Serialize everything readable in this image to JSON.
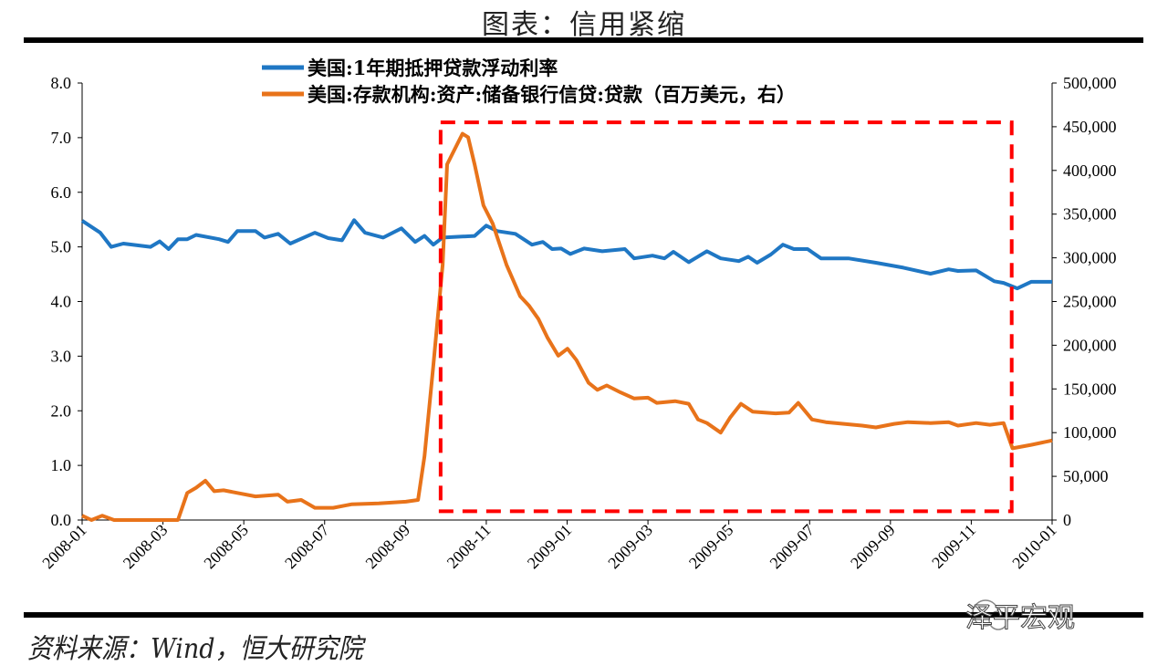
{
  "title": "图表：信用紧缩",
  "source": "资料来源：Wind，恒大研究院",
  "watermark": "泽平宏观",
  "chart_data": {
    "type": "line",
    "title": "图表：信用紧缩",
    "x_unit": "months since 2008-01",
    "xlim": [
      0,
      24
    ],
    "x_tick_labels": [
      "2008-01",
      "2008-03",
      "2008-05",
      "2008-07",
      "2008-09",
      "2008-11",
      "2009-01",
      "2009-03",
      "2009-05",
      "2009-07",
      "2009-09",
      "2009-11",
      "2010-01"
    ],
    "y_left": {
      "lim": [
        0,
        8
      ],
      "ticks": [
        "0.0",
        "1.0",
        "2.0",
        "3.0",
        "4.0",
        "5.0",
        "6.0",
        "7.0",
        "8.0"
      ]
    },
    "y_right": {
      "lim": [
        0,
        500000
      ],
      "ticks": [
        "0",
        "50,000",
        "100,000",
        "150,000",
        "200,000",
        "250,000",
        "300,000",
        "350,000",
        "400,000",
        "450,000",
        "500,000"
      ]
    },
    "legend_position": "top",
    "grid": false,
    "series": [
      {
        "name": "美国:1年期抵押贷款浮动利率",
        "axis": "left",
        "color": "#1f77c4",
        "x": [
          0,
          0.45,
          0.72,
          1.02,
          1.69,
          1.92,
          2.14,
          2.37,
          2.6,
          2.82,
          3.39,
          3.61,
          3.84,
          4.29,
          4.51,
          4.85,
          5.15,
          5.76,
          6.09,
          6.43,
          6.73,
          7.0,
          7.45,
          7.9,
          8.24,
          8.47,
          8.69,
          8.92,
          9.71,
          10.0,
          10.27,
          10.72,
          11.13,
          11.4,
          11.63,
          11.85,
          12.08,
          12.42,
          12.87,
          13.43,
          13.66,
          14.11,
          14.41,
          14.63,
          15.01,
          15.46,
          15.8,
          16.25,
          16.48,
          16.7,
          17.04,
          17.34,
          17.61,
          17.95,
          18.28,
          18.96,
          19.64,
          20.32,
          20.99,
          21.44,
          21.67,
          22.12,
          22.57,
          22.8,
          23.14,
          23.48,
          24
        ],
        "values": [
          5.48,
          5.26,
          5.0,
          5.06,
          5.0,
          5.1,
          4.96,
          5.14,
          5.14,
          5.22,
          5.14,
          5.09,
          5.29,
          5.29,
          5.17,
          5.24,
          5.06,
          5.26,
          5.16,
          5.12,
          5.49,
          5.26,
          5.17,
          5.34,
          5.09,
          5.2,
          5.04,
          5.17,
          5.2,
          5.39,
          5.29,
          5.24,
          5.04,
          5.09,
          4.96,
          4.97,
          4.87,
          4.97,
          4.92,
          4.96,
          4.79,
          4.84,
          4.79,
          4.91,
          4.72,
          4.92,
          4.79,
          4.74,
          4.82,
          4.71,
          4.86,
          5.04,
          4.96,
          4.96,
          4.79,
          4.79,
          4.71,
          4.62,
          4.51,
          4.59,
          4.56,
          4.57,
          4.37,
          4.34,
          4.24,
          4.36,
          4.36
        ]
      },
      {
        "name": "美国:存款机构:资产:储备银行信贷:贷款（百万美元，右）",
        "axis": "right",
        "color": "#e8731a",
        "x": [
          0,
          0.23,
          0.5,
          0.79,
          2.03,
          2.37,
          2.6,
          2.82,
          3.05,
          3.27,
          3.5,
          3.84,
          4.29,
          4.85,
          5.08,
          5.42,
          5.76,
          6.21,
          6.66,
          7.34,
          8.01,
          8.31,
          8.47,
          8.69,
          8.92,
          9.03,
          9.26,
          9.41,
          9.55,
          9.71,
          9.93,
          10.16,
          10.5,
          10.84,
          11.06,
          11.29,
          11.51,
          11.78,
          12.01,
          12.23,
          12.53,
          12.75,
          12.98,
          13.32,
          13.66,
          14.0,
          14.22,
          14.67,
          15.01,
          15.24,
          15.46,
          15.8,
          16.03,
          16.3,
          16.59,
          17.16,
          17.49,
          17.72,
          18.06,
          18.4,
          18.85,
          19.3,
          19.64,
          20.09,
          20.43,
          20.99,
          21.44,
          21.67,
          22.12,
          22.46,
          22.8,
          23.02,
          23.48,
          24
        ],
        "values": [
          5000,
          0,
          5000,
          0,
          0,
          0,
          31000,
          37000,
          45000,
          33000,
          34000,
          31000,
          27000,
          29000,
          21000,
          23000,
          14000,
          14000,
          18000,
          19000,
          21000,
          23000,
          73000,
          177000,
          292000,
          407000,
          428000,
          442000,
          438000,
          407000,
          360000,
          339000,
          292000,
          256000,
          245000,
          230000,
          209000,
          188000,
          196000,
          183000,
          157000,
          149000,
          154000,
          146000,
          139000,
          140000,
          134000,
          136000,
          133000,
          115000,
          111000,
          100000,
          117000,
          133000,
          124000,
          122000,
          123000,
          134000,
          115000,
          112000,
          110000,
          108000,
          106000,
          110000,
          112000,
          111000,
          112000,
          108000,
          111000,
          109000,
          111000,
          82000,
          86000,
          91000
        ]
      }
    ],
    "annotation_box": {
      "style": "red dashed rectangle",
      "color": "#ff0000",
      "x_range": [
        8.87,
        23.0
      ],
      "y_right_range": [
        10000,
        455000
      ]
    }
  }
}
